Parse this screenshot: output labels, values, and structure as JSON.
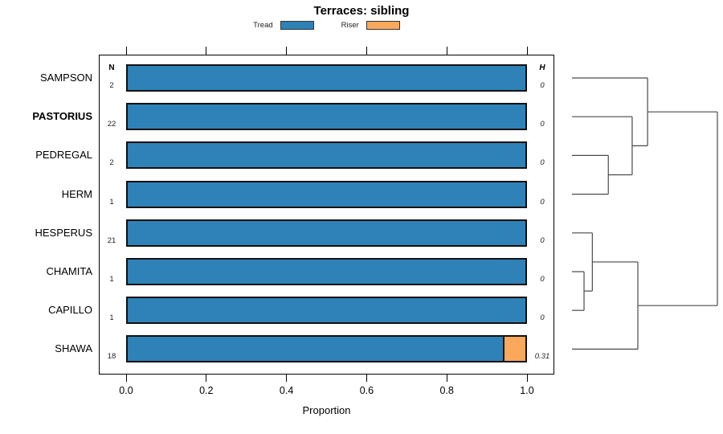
{
  "title": "Terraces: sibling",
  "legend": [
    {
      "label": "Tread",
      "color": "#2E82B8"
    },
    {
      "label": "Riser",
      "color": "#FAA85C"
    }
  ],
  "chart_data": {
    "type": "bar",
    "orientation": "horizontal",
    "stacked": true,
    "title": "Terraces: sibling",
    "xlabel": "Proportion",
    "xlim": [
      0,
      1
    ],
    "xticks": [
      0,
      0.2,
      0.4,
      0.6,
      0.8,
      1
    ],
    "n_header": "N",
    "h_header": "H",
    "categories": [
      "SAMPSON",
      "PASTORIUS",
      "PEDREGAL",
      "HERM",
      "HESPERUS",
      "CHAMITA",
      "CAPILLO",
      "SHAWA"
    ],
    "series": [
      {
        "name": "Tread",
        "color": "#2E82B8",
        "values": [
          1,
          1,
          1,
          1,
          1,
          1,
          1,
          0.944
        ]
      },
      {
        "name": "Riser",
        "color": "#FAA85C",
        "values": [
          0,
          0,
          0,
          0,
          0,
          0,
          0,
          0.056
        ]
      }
    ],
    "rows": [
      {
        "label": "SAMPSON",
        "bold": false,
        "n": "2",
        "h": "0",
        "tread": 1,
        "riser": 0
      },
      {
        "label": "PASTORIUS",
        "bold": true,
        "n": "22",
        "h": "0",
        "tread": 1,
        "riser": 0
      },
      {
        "label": "PEDREGAL",
        "bold": false,
        "n": "2",
        "h": "0",
        "tread": 1,
        "riser": 0
      },
      {
        "label": "HERM",
        "bold": false,
        "n": "1",
        "h": "0",
        "tread": 1,
        "riser": 0
      },
      {
        "label": "HESPERUS",
        "bold": false,
        "n": "21",
        "h": "0",
        "tread": 1,
        "riser": 0
      },
      {
        "label": "CHAMITA",
        "bold": false,
        "n": "1",
        "h": "0",
        "tread": 1,
        "riser": 0
      },
      {
        "label": "CAPILLO",
        "bold": false,
        "n": "1",
        "h": "0",
        "tread": 1,
        "riser": 0
      },
      {
        "label": "SHAWA",
        "bold": false,
        "n": "18",
        "h": "0.31",
        "tread": 0.944,
        "riser": 0.056
      }
    ],
    "dendrogram": {
      "height": 1.0,
      "children": [
        {
          "height": 0.52,
          "children": [
            {
              "leaf": "SAMPSON"
            },
            {
              "height": 0.414,
              "children": [
                {
                  "leaf": "PASTORIUS"
                },
                {
                  "height": 0.25,
                  "children": [
                    {
                      "leaf": "PEDREGAL"
                    },
                    {
                      "leaf": "HERM"
                    }
                  ]
                }
              ]
            }
          ]
        },
        {
          "height": 0.453,
          "children": [
            {
              "height": 0.14,
              "children": [
                {
                  "leaf": "HESPERUS"
                },
                {
                  "height": 0.083,
                  "children": [
                    {
                      "leaf": "CHAMITA"
                    },
                    {
                      "leaf": "CAPILLO"
                    }
                  ]
                }
              ]
            },
            {
              "leaf": "SHAWA"
            }
          ]
        }
      ]
    }
  }
}
